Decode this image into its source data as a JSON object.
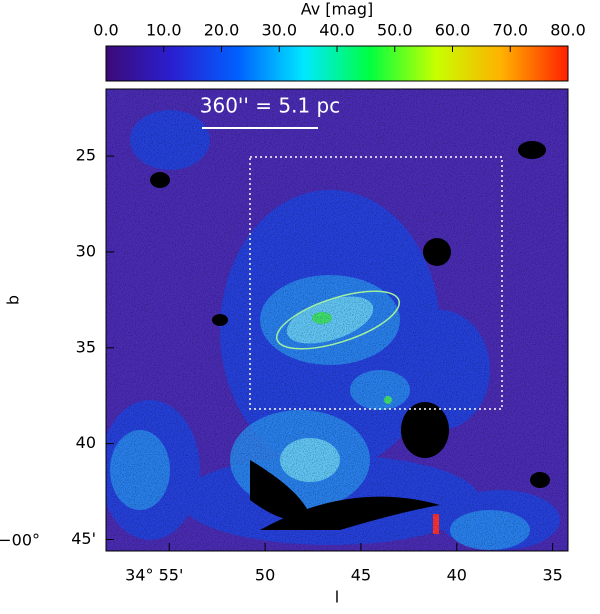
{
  "chart_data": {
    "type": "image",
    "colorbar": {
      "label": "Av [mag]",
      "lim": [
        0,
        80
      ],
      "colors": [
        "#3c0a78",
        "#2a1fd0",
        "#0060ff",
        "#00e8ff",
        "#00ff40",
        "#c8ff00",
        "#ffb000",
        "#ff2000"
      ],
      "ticks": [
        {
          "value": 0,
          "label": "0.0"
        },
        {
          "value": 10,
          "label": "10.0"
        },
        {
          "value": 20,
          "label": "20.0"
        },
        {
          "value": 30,
          "label": "30.0"
        },
        {
          "value": 40,
          "label": "40.0"
        },
        {
          "value": 50,
          "label": "50.0"
        },
        {
          "value": 60,
          "label": "60.0"
        },
        {
          "value": 70,
          "label": "70.0"
        },
        {
          "value": 80,
          "label": "80.0"
        }
      ]
    },
    "xlabel": "l",
    "ylabel": "b",
    "xlim": [
      58.3,
      34.2
    ],
    "xticks": [
      {
        "value": 55,
        "label": "34° 55'"
      },
      50,
      45,
      40,
      35
    ],
    "ylim": [
      45.6,
      21.5
    ],
    "yticks": [
      25,
      30,
      35,
      40,
      {
        "value": 45,
        "label": "45'"
      }
    ],
    "y_degree_label": "−00°",
    "scale_bar_label": "360'' = 5.1 pc"
  }
}
